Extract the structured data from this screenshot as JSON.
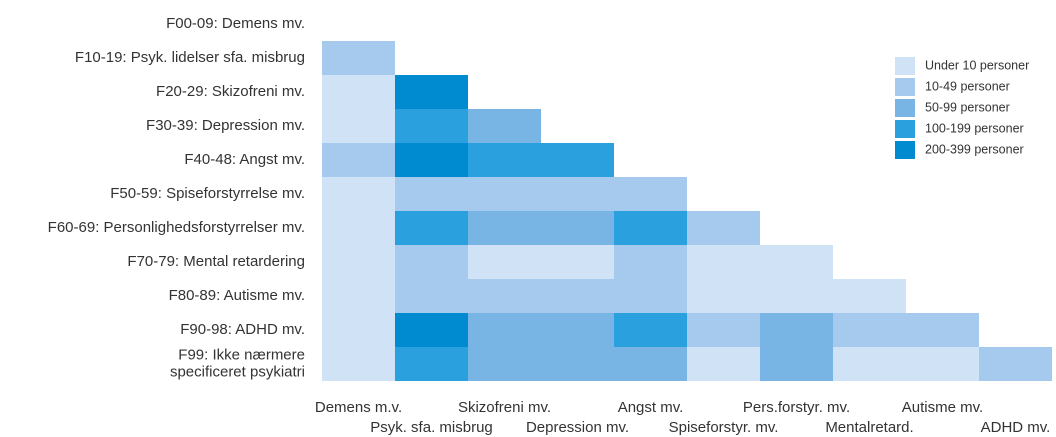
{
  "chart_data": {
    "type": "heatmap",
    "rows": [
      "F00-09: Demens mv.",
      "F10-19: Psyk. lidelser sfa. misbrug",
      "F20-29: Skizofreni mv.",
      "F30-39: Depression mv.",
      "F40-48: Angst mv.",
      "F50-59: Spiseforstyrrelse mv.",
      "F60-69: Personlighedsforstyrrelser mv.",
      "F70-79: Mental retardering",
      "F80-89: Autisme mv.",
      "F90-98: ADHD mv.",
      [
        "F99: Ikke nærmere",
        "specificeret psykiatri"
      ]
    ],
    "columns": [
      "Demens m.v.",
      "Psyk. sfa. misbrug",
      "Skizofreni mv.",
      "Depression mv.",
      "Angst mv.",
      "Spiseforstyr. mv.",
      "Pers.forstyr. mv.",
      "Mentalretard.",
      "Autisme mv.",
      "ADHD mv."
    ],
    "levels": [
      {
        "name": "Under 10 personer",
        "color": "#cfe2f6"
      },
      {
        "name": "10-49 personer",
        "color": "#a6caee"
      },
      {
        "name": "50-99 personer",
        "color": "#78b4e4"
      },
      {
        "name": "100-199 personer",
        "color": "#2ba0df"
      },
      {
        "name": "200-399 personer",
        "color": "#008bd1"
      }
    ],
    "values": [
      [],
      [
        1
      ],
      [
        0,
        4
      ],
      [
        0,
        3,
        2
      ],
      [
        1,
        4,
        3,
        3
      ],
      [
        0,
        1,
        1,
        1,
        1
      ],
      [
        0,
        3,
        2,
        2,
        3,
        1
      ],
      [
        0,
        1,
        0,
        0,
        1,
        0,
        0
      ],
      [
        0,
        1,
        1,
        1,
        1,
        0,
        0,
        0
      ],
      [
        0,
        4,
        2,
        2,
        3,
        1,
        2,
        1,
        1
      ],
      [
        0,
        3,
        2,
        2,
        2,
        0,
        2,
        0,
        0,
        1
      ]
    ]
  }
}
